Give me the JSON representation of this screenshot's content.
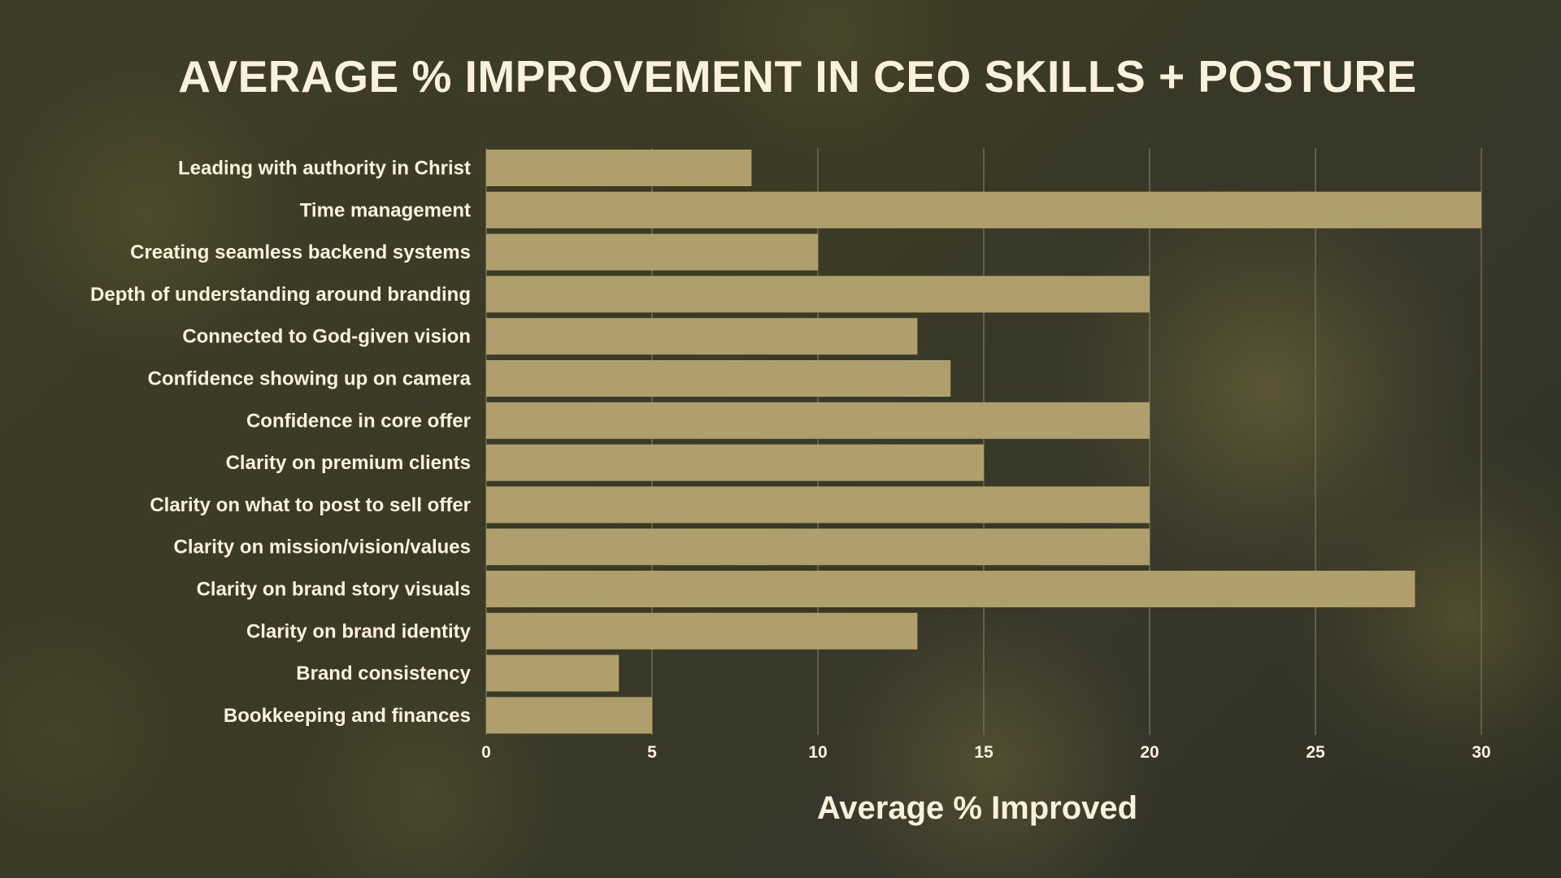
{
  "chart_data": {
    "type": "bar",
    "orientation": "horizontal",
    "title": "AVERAGE % IMPROVEMENT IN CEO SKILLS + POSTURE",
    "xlabel": "Average % Improved",
    "ylabel": "",
    "xlim": [
      0,
      30
    ],
    "xticks": [
      0,
      5,
      10,
      15,
      20,
      25,
      30
    ],
    "grid": true,
    "legend": "none",
    "bar_color": "#ae9f6c",
    "categories": [
      "Leading with authority in Christ",
      "Time management",
      "Creating seamless backend systems",
      "Depth of understanding around branding",
      "Connected to God-given vision",
      "Confidence showing up on camera",
      "Confidence in core offer",
      "Clarity on premium clients",
      "Clarity on what to post to sell offer",
      "Clarity on mission/vision/values",
      "Clarity on brand story visuals",
      "Clarity on brand identity",
      "Brand consistency",
      "Bookkeeping and finances"
    ],
    "values": [
      8,
      30,
      10,
      20,
      13,
      14,
      20,
      15,
      20,
      20,
      28,
      13,
      4,
      5
    ]
  },
  "colors": {
    "text": "#fbf1dd",
    "bar": "#ae9f6c",
    "grid": "#6f6c52"
  }
}
